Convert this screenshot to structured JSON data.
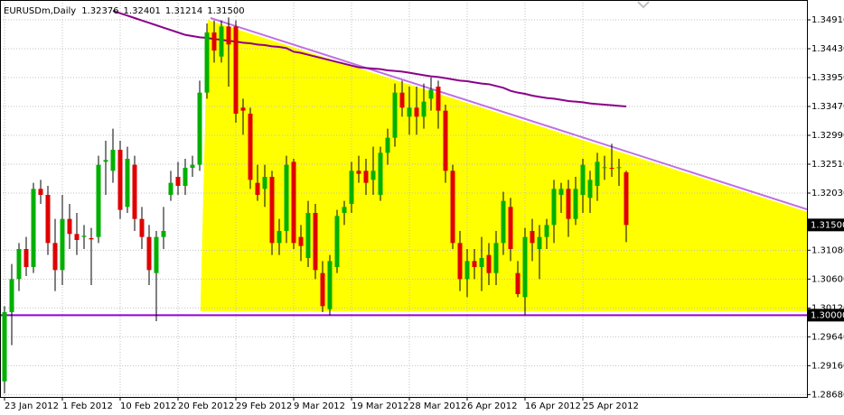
{
  "chart_data": {
    "type": "candlestick",
    "title": "EURUSDm,Daily",
    "header_values": [
      "1.32376",
      "1.32401",
      "1.31214",
      "1.31500"
    ],
    "categories": [
      "23 Jan 2012",
      null,
      null,
      null,
      null,
      null,
      null,
      null,
      "1 Feb 2012",
      null,
      null,
      null,
      null,
      null,
      null,
      null,
      "10 Feb 2012",
      null,
      null,
      null,
      null,
      null,
      null,
      null,
      "20 Feb 2012",
      null,
      null,
      null,
      null,
      null,
      null,
      null,
      "29 Feb 2012",
      null,
      null,
      null,
      null,
      null,
      null,
      null,
      "9 Mar 2012",
      null,
      null,
      null,
      null,
      null,
      null,
      null,
      "19 Mar 2012",
      null,
      null,
      null,
      null,
      null,
      null,
      null,
      "28 Mar 2012",
      null,
      null,
      null,
      null,
      null,
      null,
      null,
      "6 Apr 2012",
      null,
      null,
      null,
      null,
      null,
      null,
      null,
      "16 Apr 2012",
      null,
      null,
      null,
      null,
      null,
      null,
      null,
      "25 Apr 2012",
      null,
      null,
      null,
      null,
      null,
      null
    ],
    "open": [
      1.289,
      1.3005,
      1.306,
      1.311,
      1.308,
      1.321,
      1.32,
      1.312,
      1.3075,
      1.316,
      1.3135,
      1.313,
      1.3128,
      1.313,
      1.3255,
      1.324,
      1.3275,
      1.318,
      1.325,
      1.316,
      1.313,
      1.307,
      1.313,
      1.32,
      1.323,
      1.3215,
      1.3245,
      1.325,
      1.337,
      1.347,
      1.343,
      1.348,
      1.348,
      1.3345,
      1.3335,
      1.322,
      1.321,
      1.323,
      1.312,
      1.314,
      1.3255,
      1.313,
      1.3095,
      1.317,
      1.307,
      1.301,
      1.308,
      1.317,
      1.3185,
      1.324,
      1.324,
      1.3225,
      1.32,
      1.327,
      1.3295,
      1.337,
      1.333,
      1.3345,
      1.333,
      1.336,
      1.338,
      1.334,
      1.324,
      1.312,
      1.306,
      1.309,
      1.308,
      1.31,
      1.307,
      1.312,
      1.318,
      1.307,
      1.303,
      1.314,
      1.311,
      1.313,
      1.315,
      1.32,
      1.321,
      1.316,
      1.32,
      1.3195,
      1.3215,
      1.3245,
      1.3245,
      1.3245,
      1.32376
    ],
    "high": [
      1.3015,
      1.3085,
      1.312,
      1.313,
      1.322,
      1.3225,
      1.3215,
      1.316,
      1.32,
      1.3185,
      1.317,
      1.315,
      1.3145,
      1.3265,
      1.329,
      1.331,
      1.329,
      1.328,
      1.3265,
      1.318,
      1.315,
      1.314,
      1.318,
      1.324,
      1.3255,
      1.326,
      1.3265,
      1.339,
      1.3485,
      1.349,
      1.349,
      1.3495,
      1.349,
      1.336,
      1.3345,
      1.325,
      1.325,
      1.324,
      1.316,
      1.3265,
      1.326,
      1.315,
      1.319,
      1.3185,
      1.309,
      1.31,
      1.3175,
      1.319,
      1.3255,
      1.3265,
      1.326,
      1.328,
      1.328,
      1.331,
      1.3385,
      1.339,
      1.338,
      1.338,
      1.3385,
      1.3395,
      1.339,
      1.335,
      1.325,
      1.314,
      1.311,
      1.311,
      1.313,
      1.312,
      1.314,
      1.3205,
      1.3195,
      1.309,
      1.3145,
      1.316,
      1.315,
      1.316,
      1.3225,
      1.322,
      1.3225,
      1.323,
      1.326,
      1.324,
      1.327,
      1.3265,
      1.3285,
      1.326,
      1.32401
    ],
    "low": [
      1.287,
      1.295,
      1.304,
      1.3065,
      1.307,
      1.3185,
      1.31,
      1.304,
      1.305,
      1.311,
      1.31,
      1.311,
      1.305,
      1.312,
      1.32,
      1.322,
      1.316,
      1.317,
      1.314,
      1.311,
      1.305,
      1.299,
      1.311,
      1.319,
      1.32,
      1.32,
      1.323,
      1.324,
      1.336,
      1.342,
      1.342,
      1.338,
      1.332,
      1.33,
      1.321,
      1.319,
      1.318,
      1.31,
      1.31,
      1.312,
      1.311,
      1.309,
      1.308,
      1.306,
      1.3005,
      1.3,
      1.307,
      1.315,
      1.317,
      1.322,
      1.32,
      1.32,
      1.319,
      1.325,
      1.328,
      1.333,
      1.33,
      1.33,
      1.331,
      1.334,
      1.331,
      1.322,
      1.311,
      1.304,
      1.303,
      1.306,
      1.304,
      1.305,
      1.305,
      1.31,
      1.309,
      1.303,
      1.3,
      1.309,
      1.306,
      1.311,
      1.312,
      1.317,
      1.313,
      1.315,
      1.317,
      1.317,
      1.319,
      1.3225,
      1.323,
      1.3215,
      1.31214
    ],
    "close": [
      1.3005,
      1.306,
      1.311,
      1.308,
      1.321,
      1.32,
      1.312,
      1.3075,
      1.316,
      1.3135,
      1.3125,
      1.3132,
      1.3126,
      1.325,
      1.3258,
      1.3275,
      1.3175,
      1.326,
      1.316,
      1.313,
      1.3075,
      1.313,
      1.314,
      1.322,
      1.3215,
      1.3245,
      1.325,
      1.337,
      1.347,
      1.344,
      1.348,
      1.345,
      1.3335,
      1.334,
      1.3225,
      1.32,
      1.323,
      1.312,
      1.314,
      1.325,
      1.312,
      1.3115,
      1.317,
      1.3075,
      1.3015,
      1.309,
      1.3165,
      1.318,
      1.324,
      1.3235,
      1.322,
      1.324,
      1.327,
      1.3295,
      1.337,
      1.3345,
      1.3345,
      1.333,
      1.3355,
      1.3375,
      1.334,
      1.324,
      1.312,
      1.306,
      1.309,
      1.308,
      1.3095,
      1.307,
      1.312,
      1.319,
      1.311,
      1.3035,
      1.313,
      1.312,
      1.313,
      1.315,
      1.321,
      1.321,
      1.316,
      1.321,
      1.325,
      1.3225,
      1.3255,
      1.3246,
      1.3244,
      1.3246,
      1.315
    ],
    "up_color": "#00b000",
    "down_color": "#e00000",
    "wick_color": "#000000",
    "ma": {
      "color": "#8b008b",
      "values": [
        null,
        null,
        null,
        null,
        null,
        null,
        null,
        null,
        null,
        null,
        null,
        null,
        null,
        null,
        null,
        1.3506,
        1.3502,
        1.3498,
        1.3494,
        1.349,
        1.3486,
        1.3482,
        1.3478,
        1.3474,
        1.347,
        1.3466,
        1.3464,
        1.3462,
        1.3461,
        1.3459,
        1.3458,
        1.3456,
        1.3455,
        1.3453,
        1.3452,
        1.345,
        1.3449,
        1.3447,
        1.3446,
        1.3444,
        1.3438,
        1.3436,
        1.3433,
        1.343,
        1.3427,
        1.3424,
        1.3421,
        1.3418,
        1.3415,
        1.3412,
        1.3411,
        1.341,
        1.3409,
        1.3407,
        1.3406,
        1.3405,
        1.3403,
        1.3401,
        1.3399,
        1.3397,
        1.3396,
        1.3394,
        1.3392,
        1.339,
        1.3389,
        1.3387,
        1.3385,
        1.3384,
        1.3381,
        1.3378,
        1.3373,
        1.337,
        1.3368,
        1.3365,
        1.3363,
        1.3361,
        1.336,
        1.3358,
        1.3356,
        1.3355,
        1.3354,
        1.3352,
        1.3351,
        1.335,
        1.3349,
        1.3348,
        1.3347
      ]
    },
    "triangle": {
      "color": "#ffff00",
      "x": [
        27.1,
        28.1,
        154
      ],
      "y": [
        1.30065,
        1.3491,
        1.30065
      ]
    },
    "trendline": {
      "color": "#c070e0",
      "x": [
        28.5,
        111
      ],
      "y": [
        1.3494,
        1.3176
      ]
    },
    "hline": {
      "value": 1.3,
      "label": "1.30000",
      "color": "#9400d3"
    },
    "bid_line": {
      "value": 1.315,
      "label": "1.31500"
    },
    "ylim": [
      1.2864,
      1.3524
    ],
    "yticks": [
      {
        "value": 1.3491,
        "label": "1.34910"
      },
      {
        "value": 1.3443,
        "label": "1.34430"
      },
      {
        "value": 1.3395,
        "label": "1.33950"
      },
      {
        "value": 1.3347,
        "label": "1.33470"
      },
      {
        "value": 1.3299,
        "label": "1.32990"
      },
      {
        "value": 1.3251,
        "label": "1.32510"
      },
      {
        "value": 1.3203,
        "label": "1.32030"
      },
      {
        "value": 1.3108,
        "label": "1.31080"
      },
      {
        "value": 1.306,
        "label": "1.30600"
      },
      {
        "value": 1.3012,
        "label": "1.30120"
      },
      {
        "value": 1.2964,
        "label": "1.29640"
      },
      {
        "value": 1.2916,
        "label": "1.29160"
      },
      {
        "value": 1.2868,
        "label": "1.28680"
      }
    ],
    "grid": true
  }
}
